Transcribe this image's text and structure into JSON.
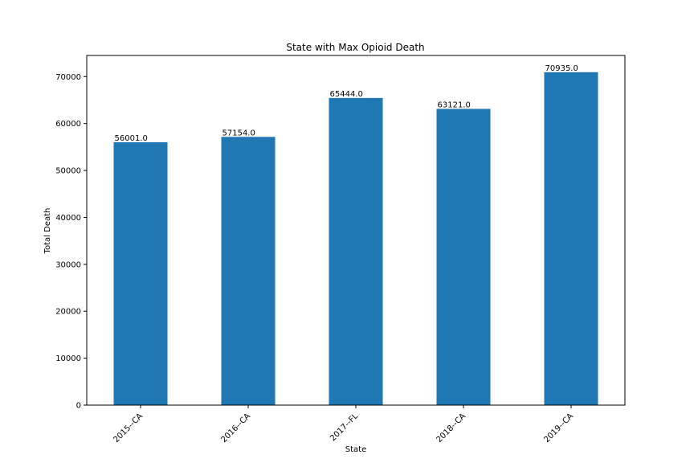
{
  "chart_data": {
    "type": "bar",
    "title": "State with Max Opioid Death",
    "xlabel": "State",
    "ylabel": "Total Death",
    "categories": [
      "2015--CA",
      "2016--CA",
      "2017--FL",
      "2018--CA",
      "2019--CA"
    ],
    "values": [
      56001.0,
      57154.0,
      65444.0,
      63121.0,
      70935.0
    ],
    "data_labels": [
      "56001.0",
      "57154.0",
      "65444.0",
      "63121.0",
      "70935.0"
    ],
    "ylim": [
      0,
      74500
    ],
    "yticks": [
      0,
      10000,
      20000,
      30000,
      40000,
      50000,
      60000,
      70000
    ],
    "bar_color": "#1f77b4",
    "grid": false,
    "legend": "none"
  }
}
